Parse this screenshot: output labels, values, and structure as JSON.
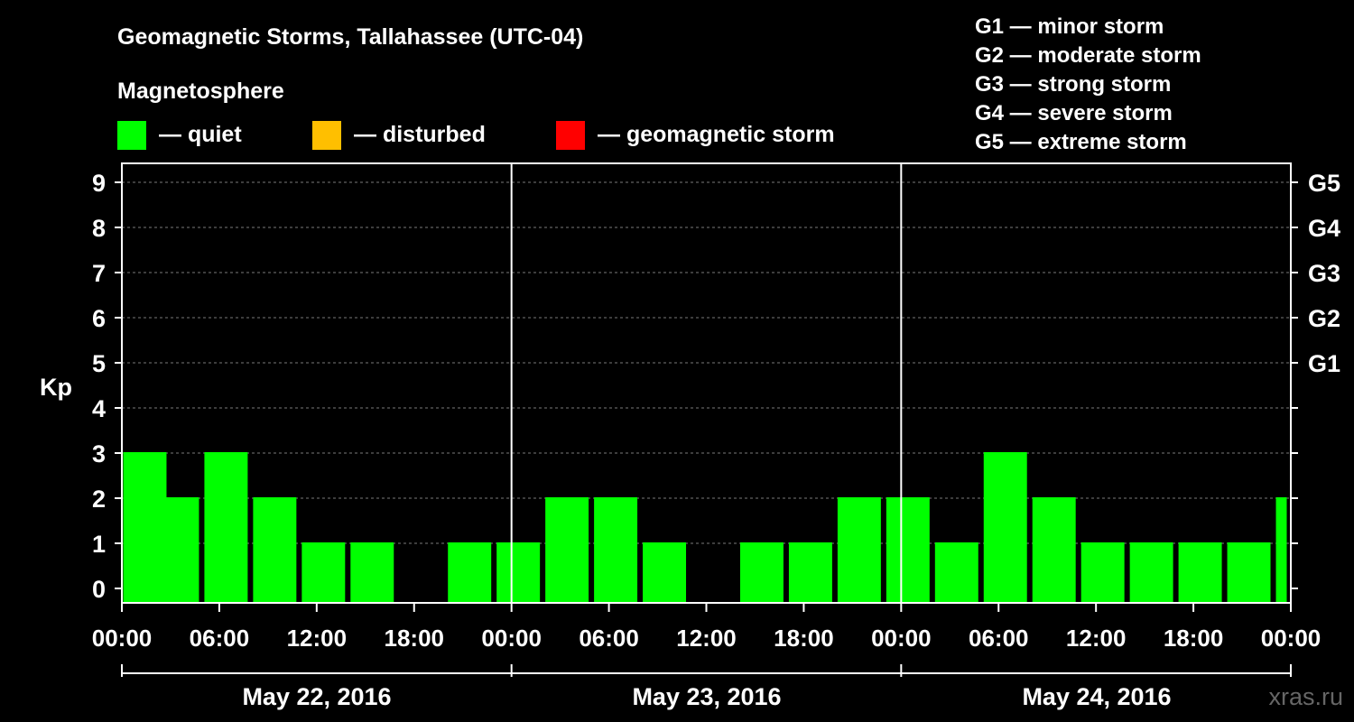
{
  "chart_data": {
    "type": "bar",
    "title": "Geomagnetic Storms, Tallahassee (UTC-04)",
    "legend_title": "Magnetosphere",
    "legend": [
      {
        "color": "#00ff00",
        "label": "— quiet"
      },
      {
        "color": "#ffbf00",
        "label": "— disturbed"
      },
      {
        "color": "#ff0000",
        "label": "— geomagnetic storm"
      }
    ],
    "storm_scale": [
      "G1 — minor storm",
      "G2 — moderate storm",
      "G3 — strong storm",
      "G4 — severe storm",
      "G5 — extreme storm"
    ],
    "ylabel": "Kp",
    "ylim": [
      0,
      9
    ],
    "y_ticks": [
      "0",
      "1",
      "2",
      "3",
      "4",
      "5",
      "6",
      "7",
      "8",
      "9"
    ],
    "right_ticks": [
      {
        "kp": 5,
        "label": "G1"
      },
      {
        "kp": 6,
        "label": "G2"
      },
      {
        "kp": 7,
        "label": "G3"
      },
      {
        "kp": 8,
        "label": "G4"
      },
      {
        "kp": 9,
        "label": "G5"
      }
    ],
    "x_tick_labels": [
      "00:00",
      "06:00",
      "12:00",
      "18:00",
      "00:00",
      "06:00",
      "12:00",
      "18:00",
      "00:00",
      "06:00",
      "12:00",
      "18:00",
      "00:00"
    ],
    "days": [
      "May 22, 2016",
      "May 23, 2016",
      "May 24, 2016"
    ],
    "grid": true,
    "bar_color": "#00ff00",
    "series": [
      {
        "values": [
          {
            "start": "May 22, 2016 00:00",
            "kp": 3
          },
          {
            "start": "May 22, 2016 02:00",
            "kp": 2
          },
          {
            "start": "May 22, 2016 05:00",
            "kp": 3
          },
          {
            "start": "May 22, 2016 08:00",
            "kp": 2
          },
          {
            "start": "May 22, 2016 11:00",
            "kp": 1
          },
          {
            "start": "May 22, 2016 14:00",
            "kp": 1
          },
          {
            "start": "May 22, 2016 17:00",
            "kp": 0
          },
          {
            "start": "May 22, 2016 20:00",
            "kp": 1
          },
          {
            "start": "May 22, 2016 23:00",
            "kp": 1
          },
          {
            "start": "May 23, 2016 02:00",
            "kp": 2
          },
          {
            "start": "May 23, 2016 05:00",
            "kp": 2
          },
          {
            "start": "May 23, 2016 08:00",
            "kp": 1
          },
          {
            "start": "May 23, 2016 11:00",
            "kp": 0
          },
          {
            "start": "May 23, 2016 14:00",
            "kp": 1
          },
          {
            "start": "May 23, 2016 17:00",
            "kp": 1
          },
          {
            "start": "May 23, 2016 20:00",
            "kp": 2
          },
          {
            "start": "May 23, 2016 23:00",
            "kp": 2
          },
          {
            "start": "May 24, 2016 02:00",
            "kp": 1
          },
          {
            "start": "May 24, 2016 05:00",
            "kp": 3
          },
          {
            "start": "May 24, 2016 08:00",
            "kp": 2
          },
          {
            "start": "May 24, 2016 11:00",
            "kp": 1
          },
          {
            "start": "May 24, 2016 14:00",
            "kp": 1
          },
          {
            "start": "May 24, 2016 17:00",
            "kp": 1
          },
          {
            "start": "May 24, 2016 20:00",
            "kp": 1
          },
          {
            "start": "May 24, 2016 23:00",
            "kp": 2
          }
        ]
      }
    ],
    "watermark": "xras.ru"
  }
}
